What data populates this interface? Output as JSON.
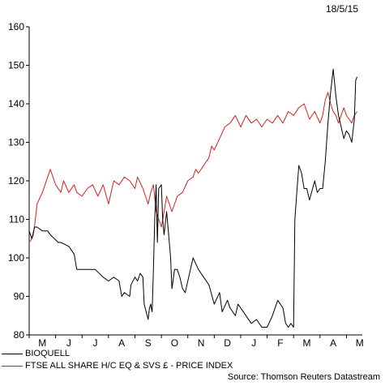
{
  "date_label": "18/5/15",
  "source": "Source: Thomson Reuters Datastream",
  "colors": {
    "bioquell": "#000000",
    "ftse": "#d62020"
  },
  "chart_data": {
    "type": "line",
    "title": "",
    "xlabel": "",
    "ylabel": "",
    "ylim": [
      80,
      160
    ],
    "yticks": [
      80,
      90,
      100,
      110,
      120,
      130,
      140,
      150,
      160
    ],
    "xlim": [
      0,
      12.6
    ],
    "month_labels": [
      "M",
      "J",
      "J",
      "A",
      "S",
      "O",
      "N",
      "D",
      "J",
      "F",
      "M",
      "A",
      "M"
    ],
    "legend_position": "bottom-left",
    "grid": false,
    "series": [
      {
        "name": "BIOQUELL",
        "color": "#000000",
        "x": [
          0,
          0.1,
          0.15,
          0.2,
          0.3,
          0.5,
          0.7,
          0.8,
          1.1,
          1.2,
          1.5,
          1.7,
          1.8,
          2.0,
          2.3,
          2.5,
          2.8,
          3.0,
          3.2,
          3.4,
          3.5,
          3.6,
          3.8,
          3.85,
          4.0,
          4.1,
          4.2,
          4.3,
          4.35,
          4.5,
          4.55,
          4.6,
          4.62,
          4.65,
          4.7,
          4.75,
          4.8,
          4.85,
          4.9,
          5.0,
          5.05,
          5.1,
          5.2,
          5.3,
          5.35,
          5.4,
          5.5,
          5.6,
          5.7,
          5.8,
          5.9,
          6.0,
          6.2,
          6.4,
          6.6,
          6.8,
          7.0,
          7.2,
          7.3,
          7.5,
          7.6,
          7.8,
          7.9,
          8.0,
          8.2,
          8.4,
          8.6,
          8.8,
          9.0,
          9.2,
          9.4,
          9.6,
          9.7,
          9.8,
          9.9,
          10.0,
          10.05,
          10.1,
          10.2,
          10.3,
          10.4,
          10.5,
          10.6,
          10.8,
          10.9,
          11.0,
          11.1,
          11.2,
          11.3,
          11.4,
          11.5,
          11.6,
          11.7,
          11.8,
          11.9,
          12.0,
          12.1,
          12.2,
          12.3,
          12.35,
          12.4
        ],
        "values": [
          107,
          105,
          106,
          108,
          108,
          107,
          107,
          106,
          104,
          104,
          103,
          101,
          97,
          97,
          97,
          97,
          95,
          94,
          95,
          94,
          90,
          91,
          90,
          93,
          95,
          94,
          96,
          95,
          88,
          84,
          87,
          88,
          87,
          86,
          97,
          110,
          119,
          104,
          118,
          119,
          110,
          106,
          112,
          104,
          100,
          92,
          97,
          97,
          95,
          92,
          91,
          94,
          100,
          97,
          95,
          93,
          88,
          91,
          86,
          89,
          87,
          85,
          88,
          87,
          85,
          83,
          84,
          82,
          82,
          85,
          89,
          87,
          83,
          82,
          83,
          82,
          110,
          115,
          124,
          122,
          118,
          118,
          115,
          120,
          117,
          118,
          118,
          125,
          135,
          143,
          149,
          142,
          137,
          134,
          131,
          133,
          132,
          130,
          136,
          146,
          147
        ]
      },
      {
        "name": "FTSE ALL SHARE H/C EQ & SVS £ - PRICE INDEX",
        "color": "#d62020",
        "x": [
          0,
          0.1,
          0.2,
          0.3,
          0.5,
          0.7,
          0.8,
          1.0,
          1.2,
          1.3,
          1.5,
          1.7,
          1.8,
          2.0,
          2.2,
          2.4,
          2.6,
          2.8,
          3.0,
          3.2,
          3.4,
          3.6,
          3.8,
          4.0,
          4.1,
          4.3,
          4.4,
          4.5,
          4.6,
          4.7,
          4.8,
          4.9,
          5.0,
          5.1,
          5.2,
          5.3,
          5.4,
          5.6,
          5.8,
          6.0,
          6.2,
          6.3,
          6.4,
          6.6,
          6.8,
          6.9,
          7.0,
          7.2,
          7.4,
          7.6,
          7.8,
          8.0,
          8.2,
          8.4,
          8.6,
          8.8,
          9.0,
          9.2,
          9.4,
          9.6,
          9.8,
          10.0,
          10.2,
          10.4,
          10.6,
          10.8,
          11.0,
          11.1,
          11.2,
          11.3,
          11.4,
          11.5,
          11.6,
          11.7,
          11.8,
          11.9,
          12.0,
          12.1,
          12.2,
          12.3,
          12.4
        ],
        "values": [
          104,
          105,
          108,
          114,
          117,
          121,
          123,
          119,
          117,
          120,
          117,
          119,
          117,
          116,
          118,
          119,
          116,
          119,
          114,
          120,
          119,
          121,
          120,
          118,
          121,
          118,
          116,
          114,
          117,
          119,
          112,
          110,
          108,
          112,
          116,
          114,
          112,
          116,
          117,
          120,
          121,
          123,
          122,
          124,
          126,
          129,
          128,
          131,
          134,
          135,
          137,
          134,
          137,
          135,
          136,
          134,
          136,
          135,
          137,
          135,
          138,
          137,
          139,
          140,
          136,
          138,
          135,
          137,
          141,
          143,
          140,
          138,
          137,
          135,
          137,
          139,
          137,
          136,
          135,
          137,
          138
        ]
      }
    ]
  }
}
